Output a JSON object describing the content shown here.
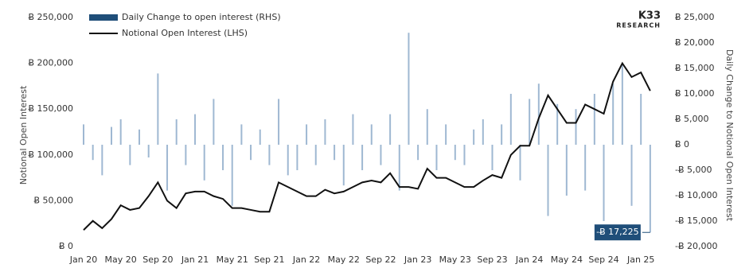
{
  "chart_data": {
    "type": "bar-line",
    "logo": {
      "brand": "K33",
      "sub": "RESEARCH"
    },
    "ylabel": "Notional Open Interest",
    "y2label": "Daily Change to Notional Open Interest",
    "grid": false,
    "x": [
      "2020-01",
      "2020-02",
      "2020-03",
      "2020-04",
      "2020-05",
      "2020-06",
      "2020-07",
      "2020-08",
      "2020-09",
      "2020-10",
      "2020-11",
      "2020-12",
      "2021-01",
      "2021-02",
      "2021-03",
      "2021-04",
      "2021-05",
      "2021-06",
      "2021-07",
      "2021-08",
      "2021-09",
      "2021-10",
      "2021-11",
      "2021-12",
      "2022-01",
      "2022-02",
      "2022-03",
      "2022-04",
      "2022-05",
      "2022-06",
      "2022-07",
      "2022-08",
      "2022-09",
      "2022-10",
      "2022-11",
      "2022-12",
      "2023-01",
      "2023-02",
      "2023-03",
      "2023-04",
      "2023-05",
      "2023-06",
      "2023-07",
      "2023-08",
      "2023-09",
      "2023-10",
      "2023-11",
      "2023-12",
      "2024-01",
      "2024-02",
      "2024-03",
      "2024-04",
      "2024-05",
      "2024-06",
      "2024-07",
      "2024-08",
      "2024-09",
      "2024-10",
      "2024-11",
      "2024-12",
      "2025-01",
      "2025-02"
    ],
    "xticks": [
      {
        "value": "2020-01",
        "label": "Jan 20"
      },
      {
        "value": "2020-05",
        "label": "May 20"
      },
      {
        "value": "2020-09",
        "label": "Sep 20"
      },
      {
        "value": "2021-01",
        "label": "Jan 21"
      },
      {
        "value": "2021-05",
        "label": "May 21"
      },
      {
        "value": "2021-09",
        "label": "Sep 21"
      },
      {
        "value": "2022-01",
        "label": "Jan 22"
      },
      {
        "value": "2022-05",
        "label": "May 22"
      },
      {
        "value": "2022-09",
        "label": "Sep 22"
      },
      {
        "value": "2023-01",
        "label": "Jan 23"
      },
      {
        "value": "2023-05",
        "label": "May 23"
      },
      {
        "value": "2023-09",
        "label": "Sep 23"
      },
      {
        "value": "2024-01",
        "label": "Jan 24"
      },
      {
        "value": "2024-05",
        "label": "May 24"
      },
      {
        "value": "2024-09",
        "label": "Sep 24"
      },
      {
        "value": "2025-01",
        "label": "Jan 25"
      }
    ],
    "ylim": [
      0,
      250000
    ],
    "yticks": [
      {
        "value": 0,
        "label": "Ƀ 0"
      },
      {
        "value": 50000,
        "label": "Ƀ 50,000"
      },
      {
        "value": 100000,
        "label": "Ƀ 100,000"
      },
      {
        "value": 150000,
        "label": "Ƀ 150,000"
      },
      {
        "value": 200000,
        "label": "Ƀ 200,000"
      },
      {
        "value": 250000,
        "label": "Ƀ 250,000"
      }
    ],
    "y2lim": [
      -20000,
      25000
    ],
    "y2ticks": [
      {
        "value": -20000,
        "label": "-Ƀ 20,000"
      },
      {
        "value": -15000,
        "label": "-Ƀ 15,000"
      },
      {
        "value": -10000,
        "label": "-Ƀ 10,000"
      },
      {
        "value": -5000,
        "label": "-Ƀ 5,000"
      },
      {
        "value": 0,
        "label": "Ƀ 0"
      },
      {
        "value": 5000,
        "label": "Ƀ 5,000"
      },
      {
        "value": 10000,
        "label": "Ƀ 10,000"
      },
      {
        "value": 15000,
        "label": "Ƀ 15,000"
      },
      {
        "value": 20000,
        "label": "Ƀ 20,000"
      },
      {
        "value": 25000,
        "label": "Ƀ 25,000"
      }
    ],
    "series": [
      {
        "name": "Daily Change to open interest (RHS)",
        "kind": "bar",
        "axis": "y2",
        "color": "#9fb8d2",
        "legend_color": "#1f4e79",
        "values": [
          4000,
          -3000,
          -6000,
          3500,
          5000,
          -4000,
          3000,
          -2500,
          14000,
          -9000,
          5000,
          -4000,
          6000,
          -7000,
          9000,
          -5000,
          -12000,
          4000,
          -3000,
          3000,
          -4000,
          9000,
          -6000,
          -5000,
          4000,
          -4000,
          5000,
          -3000,
          -8000,
          6000,
          -5000,
          4000,
          -4000,
          6000,
          -9000,
          22000,
          -3000,
          7000,
          -5000,
          4000,
          -3000,
          -4000,
          3000,
          5000,
          -5000,
          4000,
          10000,
          -7000,
          9000,
          12000,
          -14000,
          8000,
          -10000,
          7000,
          -9000,
          10000,
          -15000,
          12000,
          16000,
          -12000,
          10000,
          -17225
        ],
        "value_labels": [
          null,
          null,
          null,
          null,
          null,
          null,
          null,
          null,
          null,
          null,
          null,
          null,
          null,
          null,
          null,
          null,
          null,
          null,
          null,
          null,
          null,
          null,
          null,
          null,
          null,
          null,
          null,
          null,
          null,
          null,
          null,
          null,
          null,
          null,
          null,
          null,
          null,
          null,
          null,
          null,
          null,
          null,
          null,
          null,
          null,
          null,
          null,
          null,
          null,
          null,
          null,
          null,
          null,
          null,
          null,
          null,
          null,
          null,
          null,
          null,
          null,
          "-Ƀ 17,225"
        ]
      },
      {
        "name": "Notional Open Interest (LHS)",
        "kind": "line",
        "axis": "y",
        "color": "#111111",
        "values": [
          18000,
          28000,
          20000,
          30000,
          45000,
          40000,
          42000,
          55000,
          70000,
          50000,
          42000,
          58000,
          60000,
          60000,
          55000,
          52000,
          42000,
          42000,
          40000,
          38000,
          38000,
          70000,
          65000,
          60000,
          55000,
          55000,
          62000,
          58000,
          60000,
          65000,
          70000,
          72000,
          70000,
          80000,
          65000,
          65000,
          63000,
          85000,
          75000,
          75000,
          70000,
          65000,
          65000,
          72000,
          78000,
          75000,
          100000,
          110000,
          110000,
          140000,
          165000,
          150000,
          135000,
          135000,
          155000,
          150000,
          145000,
          180000,
          200000,
          185000,
          190000,
          170000
        ]
      }
    ]
  }
}
